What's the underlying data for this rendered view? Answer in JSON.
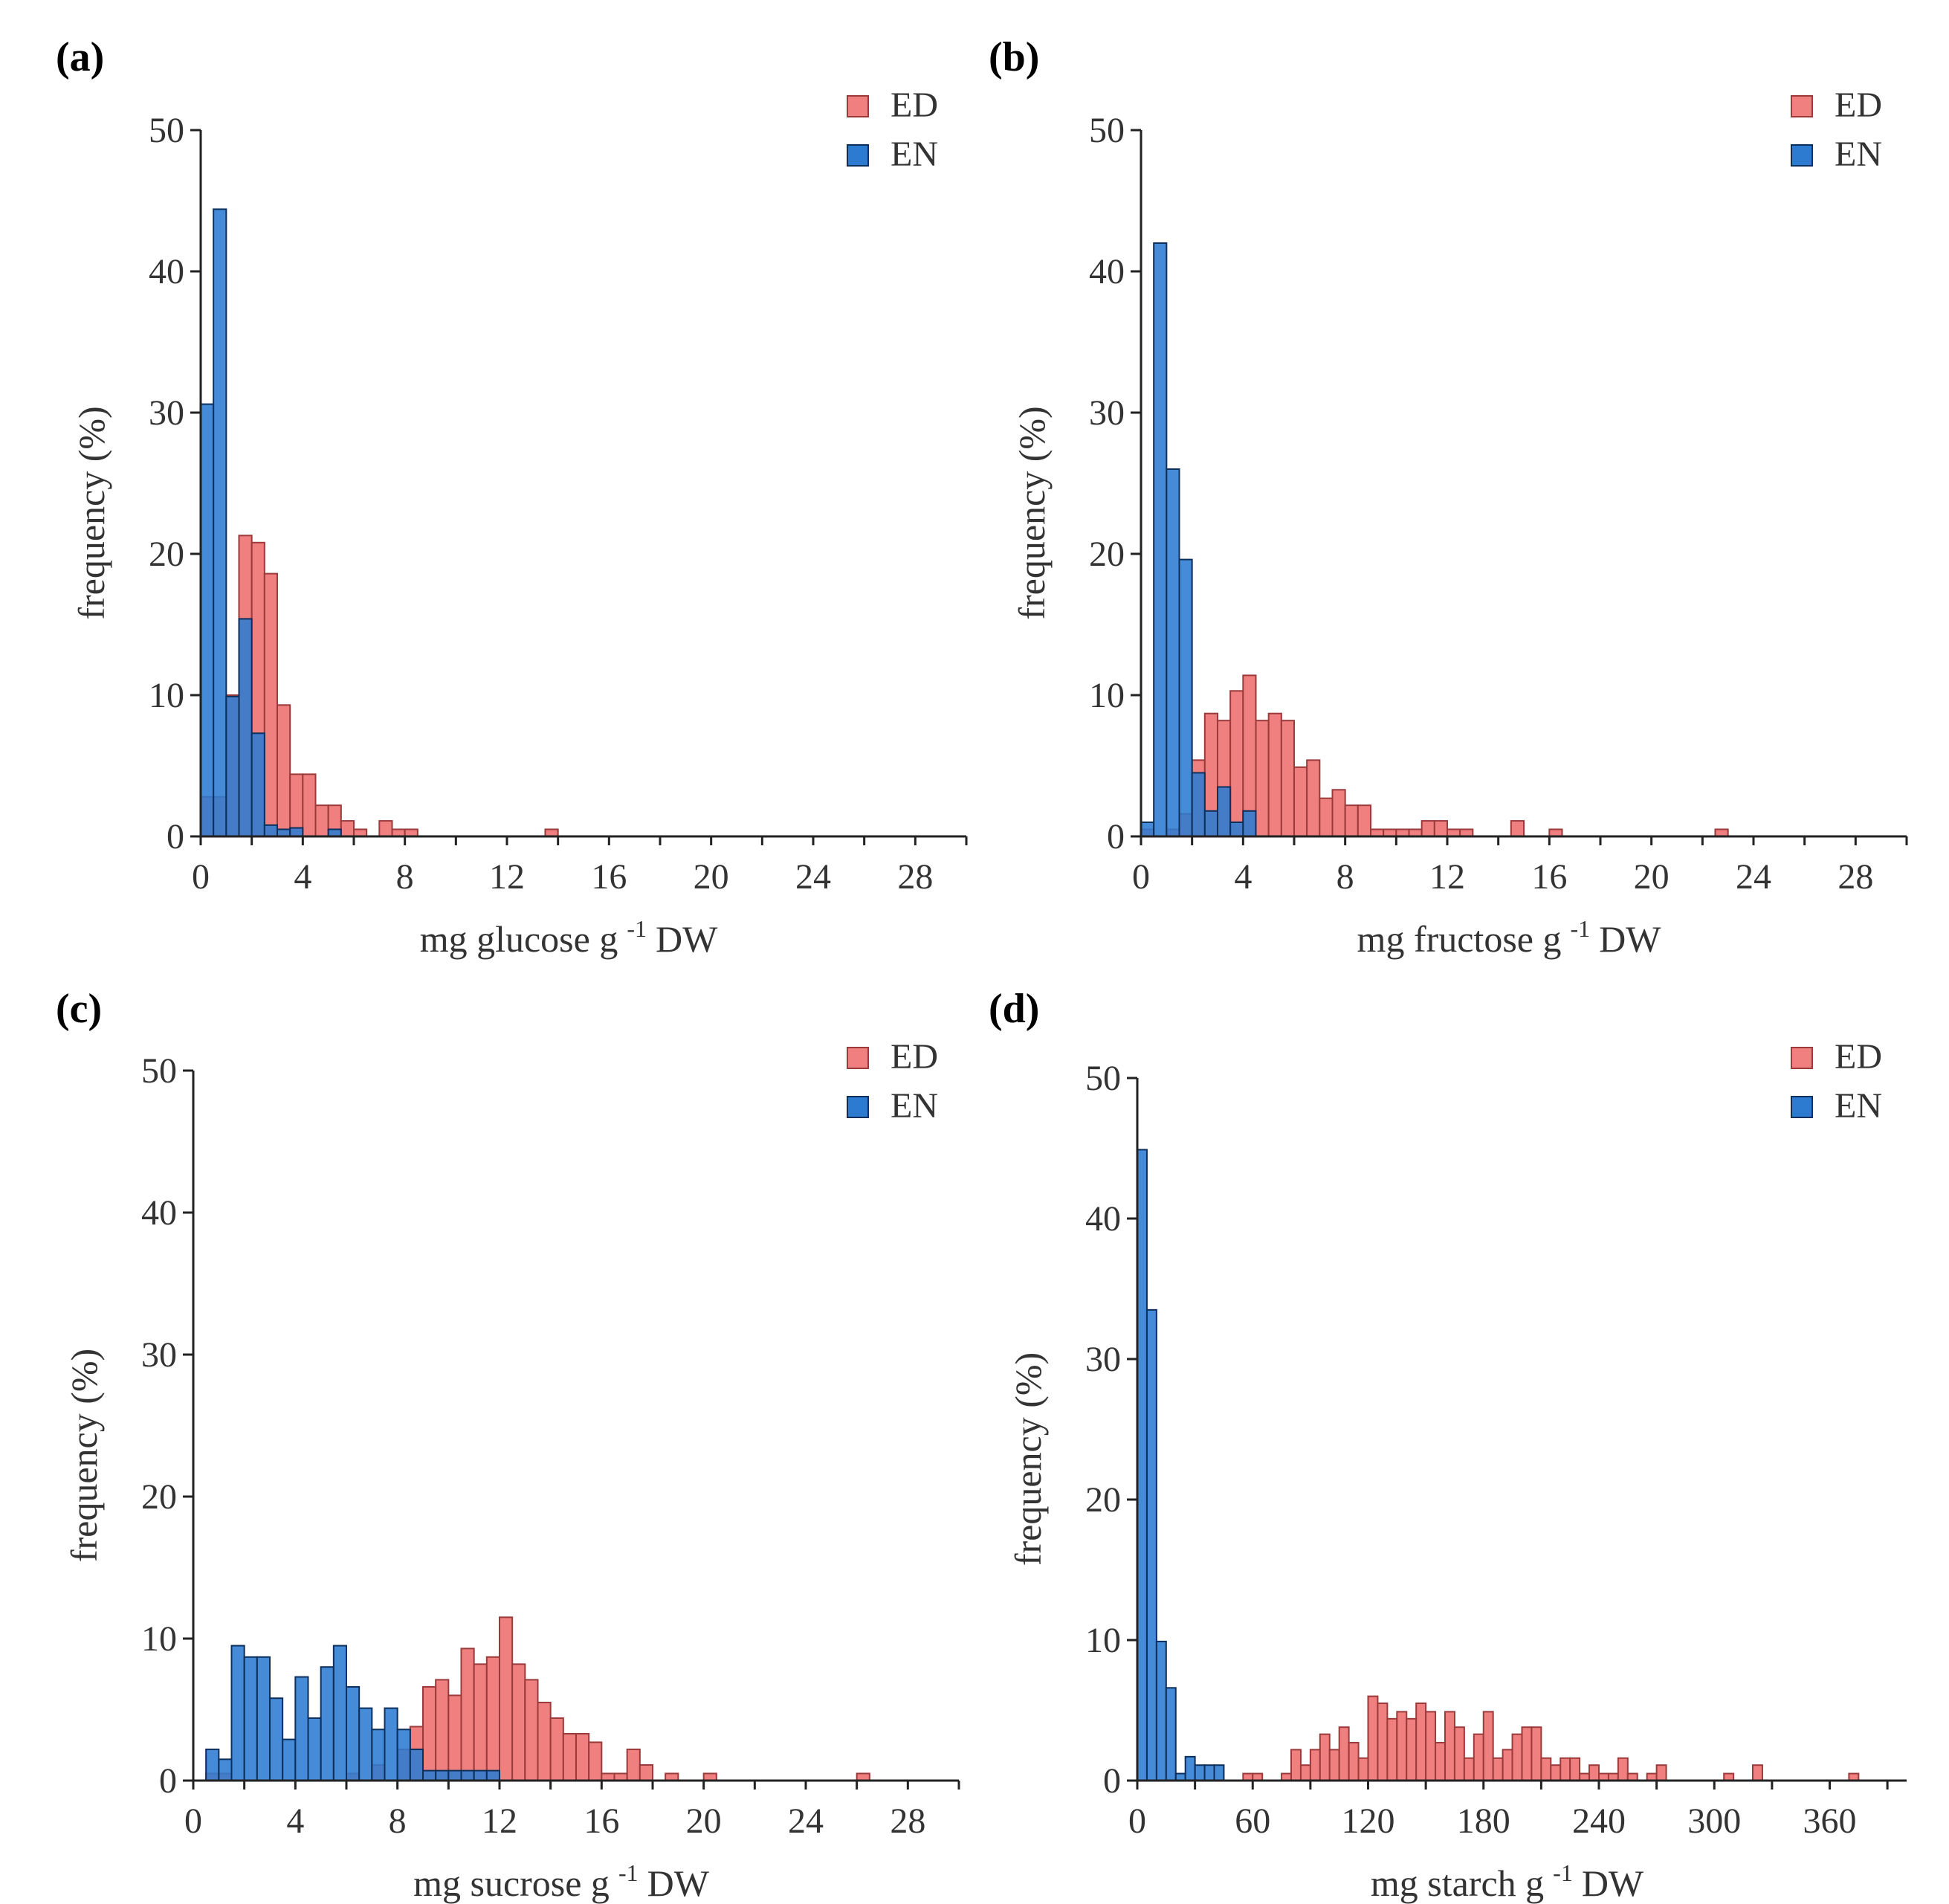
{
  "colors": {
    "ED": "#f08080",
    "ED_stroke": "#9a3a3a",
    "EN": "#2c7bd1",
    "EN_stroke": "#0d2f5c",
    "axis": "#222222"
  },
  "legend": {
    "ed": "ED",
    "en": "EN"
  },
  "chart_data": [
    {
      "type": "bar",
      "panel": "(a)",
      "xlabel": "mg glucose g",
      "xlabel_sup": "-1",
      "xlabel_unit": "DW",
      "ylabel": "frequency (%)",
      "xlim": [
        0,
        30
      ],
      "ylim": [
        0,
        50
      ],
      "xticks": [
        0,
        4,
        8,
        12,
        16,
        20,
        24,
        28
      ],
      "yticks": [
        0,
        10,
        20,
        30,
        40,
        50
      ],
      "bin_width": 0.5,
      "series": [
        {
          "name": "ED",
          "bins": [
            [
              0,
              2.8
            ],
            [
              0.5,
              2.8
            ],
            [
              1.0,
              10
            ],
            [
              1.5,
              21.3
            ],
            [
              2.0,
              20.8
            ],
            [
              2.5,
              18.6
            ],
            [
              3.0,
              9.3
            ],
            [
              3.5,
              4.4
            ],
            [
              4.0,
              4.4
            ],
            [
              4.5,
              2.2
            ],
            [
              5.0,
              2.2
            ],
            [
              5.5,
              1.1
            ],
            [
              6.0,
              0.5
            ],
            [
              7.0,
              1.1
            ],
            [
              7.5,
              0.5
            ],
            [
              8.0,
              0.5
            ],
            [
              13.5,
              0.5
            ]
          ]
        },
        {
          "name": "EN",
          "bins": [
            [
              0,
              30.6
            ],
            [
              0.5,
              44.4
            ],
            [
              1.0,
              9.9
            ],
            [
              1.5,
              15.4
            ],
            [
              2.0,
              7.3
            ],
            [
              2.5,
              0.8
            ],
            [
              3.0,
              0.5
            ],
            [
              3.5,
              0.6
            ],
            [
              5.0,
              0.5
            ]
          ]
        }
      ]
    },
    {
      "type": "bar",
      "panel": "(b)",
      "xlabel": "mg fructose g",
      "xlabel_sup": "-1",
      "xlabel_unit": "DW",
      "ylabel": "frequency (%)",
      "xlim": [
        0,
        30
      ],
      "ylim": [
        0,
        50
      ],
      "xticks": [
        0,
        4,
        8,
        12,
        16,
        20,
        24,
        28
      ],
      "yticks": [
        0,
        10,
        20,
        30,
        40,
        50
      ],
      "bin_width": 0.5,
      "series": [
        {
          "name": "ED",
          "bins": [
            [
              0,
              0.5
            ],
            [
              1.0,
              0.5
            ],
            [
              1.5,
              1.6
            ],
            [
              2.0,
              5.4
            ],
            [
              2.5,
              8.7
            ],
            [
              3.0,
              8.2
            ],
            [
              3.5,
              10.3
            ],
            [
              4.0,
              11.4
            ],
            [
              4.5,
              8.2
            ],
            [
              5.0,
              8.7
            ],
            [
              5.5,
              8.2
            ],
            [
              6.0,
              4.9
            ],
            [
              6.5,
              5.4
            ],
            [
              7.0,
              2.7
            ],
            [
              7.5,
              3.3
            ],
            [
              8.0,
              2.2
            ],
            [
              8.5,
              2.2
            ],
            [
              9.0,
              0.5
            ],
            [
              9.5,
              0.5
            ],
            [
              10.0,
              0.5
            ],
            [
              10.5,
              0.5
            ],
            [
              11.0,
              1.1
            ],
            [
              11.5,
              1.1
            ],
            [
              12.0,
              0.5
            ],
            [
              12.5,
              0.5
            ],
            [
              14.5,
              1.1
            ],
            [
              16.0,
              0.5
            ],
            [
              22.5,
              0.5
            ]
          ]
        },
        {
          "name": "EN",
          "bins": [
            [
              0,
              1.0
            ],
            [
              0.5,
              42.0
            ],
            [
              1.0,
              26.0
            ],
            [
              1.5,
              19.6
            ],
            [
              2.0,
              4.5
            ],
            [
              2.5,
              1.8
            ],
            [
              3.0,
              3.5
            ],
            [
              3.5,
              1.0
            ],
            [
              4.0,
              1.8
            ]
          ]
        }
      ]
    },
    {
      "type": "bar",
      "panel": "(c)",
      "xlabel": "mg sucrose g",
      "xlabel_sup": "-1",
      "xlabel_unit": "DW",
      "ylabel": "frequency (%)",
      "xlim": [
        0,
        30
      ],
      "ylim": [
        0,
        50
      ],
      "xticks": [
        0,
        4,
        8,
        12,
        16,
        20,
        24,
        28
      ],
      "yticks": [
        0,
        10,
        20,
        30,
        40,
        50
      ],
      "bin_width": 0.5,
      "series": [
        {
          "name": "ED",
          "bins": [
            [
              0.5,
              0.5
            ],
            [
              1.0,
              0.5
            ],
            [
              6.0,
              0.5
            ],
            [
              7.0,
              1.1
            ],
            [
              8.0,
              2.2
            ],
            [
              8.5,
              3.8
            ],
            [
              9.0,
              6.6
            ],
            [
              9.5,
              7.1
            ],
            [
              10.0,
              6.0
            ],
            [
              10.5,
              9.3
            ],
            [
              11.0,
              8.2
            ],
            [
              11.5,
              8.7
            ],
            [
              12.0,
              11.5
            ],
            [
              12.5,
              8.2
            ],
            [
              13.0,
              7.1
            ],
            [
              13.5,
              5.5
            ],
            [
              14.0,
              4.4
            ],
            [
              14.5,
              3.3
            ],
            [
              15.0,
              3.3
            ],
            [
              15.5,
              2.7
            ],
            [
              16.0,
              0.5
            ],
            [
              16.5,
              0.5
            ],
            [
              17.0,
              2.2
            ],
            [
              17.5,
              1.1
            ],
            [
              18.5,
              0.5
            ],
            [
              20.0,
              0.5
            ],
            [
              26.0,
              0.5
            ]
          ]
        },
        {
          "name": "EN",
          "bins": [
            [
              0.5,
              2.2
            ],
            [
              1.0,
              1.5
            ],
            [
              1.5,
              9.5
            ],
            [
              2.0,
              8.7
            ],
            [
              2.5,
              8.7
            ],
            [
              3.0,
              5.8
            ],
            [
              3.5,
              2.9
            ],
            [
              4.0,
              7.3
            ],
            [
              4.5,
              4.4
            ],
            [
              5.0,
              8.0
            ],
            [
              5.5,
              9.5
            ],
            [
              6.0,
              6.6
            ],
            [
              6.5,
              5.1
            ],
            [
              7.0,
              3.6
            ],
            [
              7.5,
              5.1
            ],
            [
              8.0,
              3.6
            ],
            [
              8.5,
              2.2
            ],
            [
              9.0,
              0.7
            ],
            [
              9.5,
              0.7
            ],
            [
              10.0,
              0.7
            ],
            [
              10.5,
              0.7
            ],
            [
              11.0,
              0.7
            ],
            [
              11.5,
              0.7
            ]
          ]
        }
      ]
    },
    {
      "type": "bar",
      "panel": "(d)",
      "xlabel": "mg starch g",
      "xlabel_sup": "-1",
      "xlabel_unit": "DW",
      "ylabel": "frequency (%)",
      "xlim": [
        0,
        400
      ],
      "ylim": [
        0,
        50
      ],
      "xticks": [
        0,
        60,
        120,
        180,
        240,
        300,
        360
      ],
      "yticks": [
        0,
        10,
        20,
        30,
        40,
        50
      ],
      "bin_width": 5,
      "series": [
        {
          "name": "ED",
          "bins": [
            [
              55,
              0.5
            ],
            [
              60,
              0.5
            ],
            [
              75,
              0.5
            ],
            [
              80,
              2.2
            ],
            [
              85,
              1.1
            ],
            [
              90,
              2.2
            ],
            [
              95,
              3.3
            ],
            [
              100,
              2.2
            ],
            [
              105,
              3.8
            ],
            [
              110,
              2.7
            ],
            [
              115,
              1.6
            ],
            [
              120,
              6.0
            ],
            [
              125,
              5.5
            ],
            [
              130,
              4.4
            ],
            [
              135,
              4.9
            ],
            [
              140,
              4.4
            ],
            [
              145,
              5.5
            ],
            [
              150,
              4.9
            ],
            [
              155,
              2.7
            ],
            [
              160,
              4.9
            ],
            [
              165,
              3.8
            ],
            [
              170,
              1.6
            ],
            [
              175,
              3.3
            ],
            [
              180,
              4.9
            ],
            [
              185,
              1.6
            ],
            [
              190,
              2.2
            ],
            [
              195,
              3.3
            ],
            [
              200,
              3.8
            ],
            [
              205,
              3.8
            ],
            [
              210,
              1.6
            ],
            [
              215,
              1.1
            ],
            [
              220,
              1.6
            ],
            [
              225,
              1.6
            ],
            [
              230,
              0.5
            ],
            [
              235,
              1.1
            ],
            [
              240,
              0.5
            ],
            [
              245,
              0.5
            ],
            [
              250,
              1.6
            ],
            [
              255,
              0.5
            ],
            [
              265,
              0.5
            ],
            [
              270,
              1.1
            ],
            [
              305,
              0.5
            ],
            [
              320,
              1.1
            ],
            [
              370,
              0.5
            ]
          ]
        },
        {
          "name": "EN",
          "bins": [
            [
              0,
              44.9
            ],
            [
              5,
              33.5
            ],
            [
              10,
              9.9
            ],
            [
              15,
              6.6
            ],
            [
              20,
              0.5
            ],
            [
              25,
              1.7
            ],
            [
              30,
              1.1
            ],
            [
              35,
              1.1
            ],
            [
              40,
              1.1
            ]
          ]
        }
      ]
    }
  ]
}
